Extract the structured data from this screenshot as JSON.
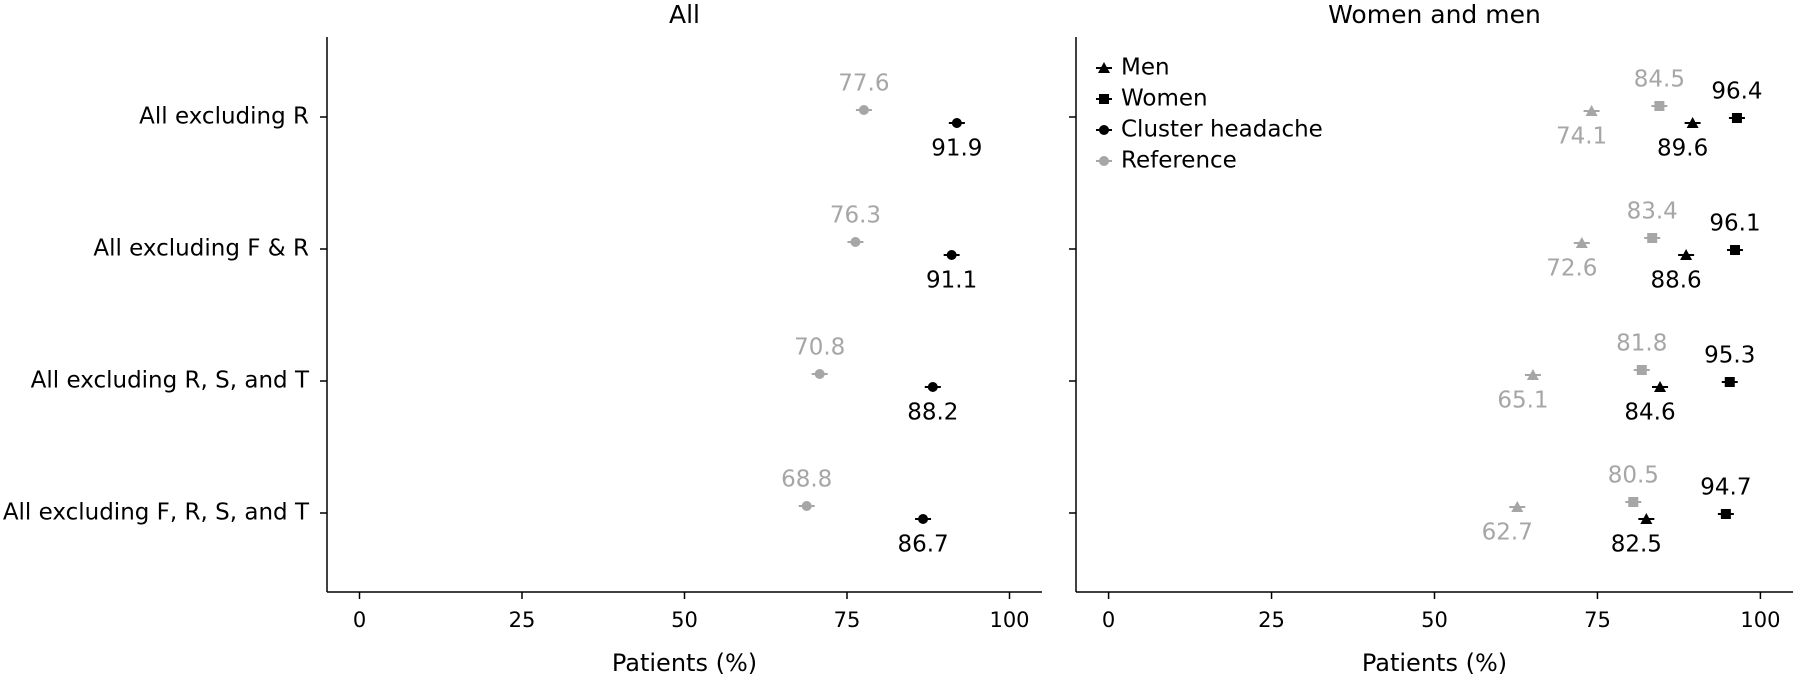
{
  "chart_data": [
    {
      "type": "dot",
      "title": "All",
      "xlabel": "Patients (%)",
      "categories": [
        "All excluding R",
        "All excluding F & R",
        "All excluding R, S, and T",
        "All excluding F, R, S, and T"
      ],
      "xlim": [
        -5,
        105
      ],
      "xticks": [
        0,
        25,
        50,
        75,
        100
      ],
      "series": [
        {
          "marker": "circle",
          "color": "#000000",
          "values": [
            91.9,
            91.1,
            88.2,
            86.7
          ]
        },
        {
          "marker": "circle",
          "color": "#a6a6a6",
          "values": [
            77.6,
            76.3,
            70.8,
            68.8
          ]
        }
      ]
    },
    {
      "type": "dot",
      "title": "Women and men",
      "xlabel": "Patients (%)",
      "xlim": [
        -5,
        105
      ],
      "xticks": [
        0,
        25,
        50,
        75,
        100
      ],
      "legend": [
        {
          "label": "Men",
          "marker": "triangle",
          "color": "#000000"
        },
        {
          "label": "Women",
          "marker": "square",
          "color": "#000000"
        },
        {
          "label": "Cluster headache",
          "marker": "circle",
          "color": "#000000"
        },
        {
          "label": "Reference",
          "marker": "circle",
          "color": "#a6a6a6"
        }
      ],
      "series": [
        {
          "marker": "triangle",
          "color": "#000000",
          "values": [
            89.6,
            88.6,
            84.6,
            82.5
          ]
        },
        {
          "marker": "square",
          "color": "#000000",
          "values": [
            96.4,
            96.1,
            95.3,
            94.7
          ]
        },
        {
          "marker": "triangle",
          "color": "#a6a6a6",
          "values": [
            74.1,
            72.6,
            65.1,
            62.7
          ]
        },
        {
          "marker": "square",
          "color": "#a6a6a6",
          "values": [
            84.5,
            83.4,
            81.8,
            80.5
          ]
        }
      ]
    }
  ]
}
